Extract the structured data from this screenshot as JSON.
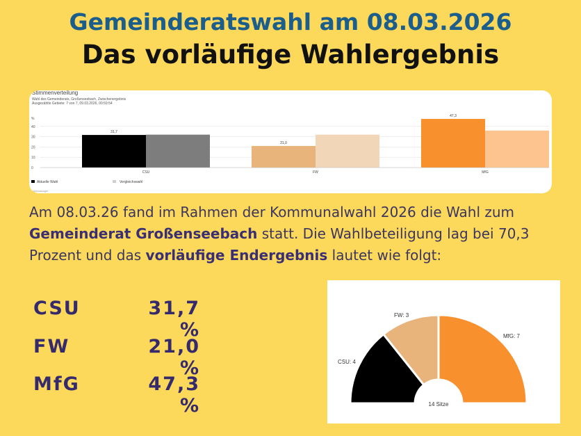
{
  "header": {
    "title": "Gemeinderatswahl am 08.03.2026",
    "subtitle": "Das vorläufige Wahlergebnis"
  },
  "bar_chart": {
    "title": "Stimmenverteilung",
    "meta_line1": "Wahl des Gemeinderats, Großenseebach, Zwischenergebnis",
    "meta_line2": "Ausgezählte Gebiete: 7 von 7, 09.03.2026, 00:59:54",
    "axis_unit": "%",
    "legend_current": "Aktuelle Wahl",
    "legend_compare": "Vergleichswahl",
    "footer": "votemanager"
  },
  "intro": {
    "p1": "Am 08.03.26 fand im Rahmen der Kommunalwahl 2026 die Wahl zum ",
    "b1": "Gemeinderat Großenseebach",
    "p2": " statt. Die Wahlbeteiligung lag bei 70,3 Prozent und das ",
    "b2": "vorläufige Endergebnis",
    "p3": " lautet wie folgt:"
  },
  "results": [
    {
      "party": "CSU",
      "percent": "31,7 %"
    },
    {
      "party": "FW",
      "percent": "21,0 %"
    },
    {
      "party": "MfG",
      "percent": "47,3 %"
    }
  ],
  "seat_chart": {
    "total_label": "14 Sitze",
    "slice_labels": [
      "CSU: 4",
      "FW: 3",
      "MfG: 7"
    ]
  },
  "chart_data": [
    {
      "type": "bar",
      "title": "Stimmenverteilung",
      "categories": [
        "CSU",
        "FW",
        "MfG"
      ],
      "series": [
        {
          "name": "Aktuelle Wahl",
          "values": [
            31.7,
            21.0,
            47.3
          ],
          "colors": [
            "#000000",
            "#e8b47b",
            "#f7902d"
          ]
        },
        {
          "name": "Vergleichswahl",
          "values": [
            32.0,
            32.0,
            36.0
          ],
          "colors": [
            "#7d7d7d",
            "#f1d7b8",
            "#fdc48f"
          ]
        }
      ],
      "value_labels": [
        "31,7",
        "21,0",
        "47,3"
      ],
      "ylabel": "%",
      "yticks": [
        0,
        10,
        20,
        30,
        40
      ],
      "ylim": [
        0,
        50
      ]
    },
    {
      "type": "pie",
      "title": "14 Sitze",
      "categories": [
        "CSU",
        "FW",
        "MfG"
      ],
      "values": [
        4,
        3,
        7
      ],
      "colors": [
        "#000000",
        "#e8b47b",
        "#f7902d"
      ]
    }
  ]
}
